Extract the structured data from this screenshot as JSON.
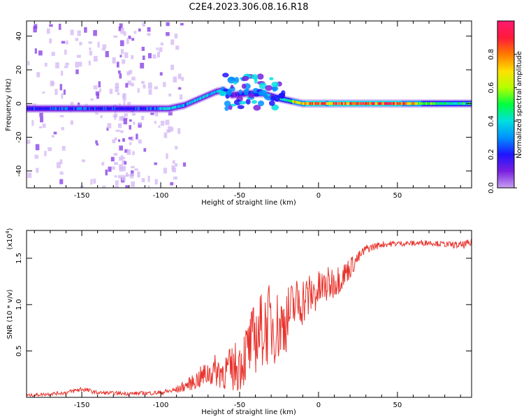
{
  "title": "C2E4.2023.306.08.16.R18",
  "colors": {
    "snr_line": "#e8332c",
    "cmap": [
      "#ffffff",
      "#c7a0f0",
      "#7a1fe0",
      "#1f14ff",
      "#0091ff",
      "#00e0e0",
      "#00ff40",
      "#b4ff00",
      "#ffe000",
      "#ff7a00",
      "#ff1a3a",
      "#ff1a70"
    ]
  },
  "chart_data": [
    {
      "type": "heatmap",
      "xlabel": "Height of straight line (km)",
      "ylabel": "Frequency (Hz)",
      "xlim": [
        -185,
        97
      ],
      "ylim": [
        -50,
        49
      ],
      "xticks": [
        -150,
        -100,
        -50,
        0,
        50
      ],
      "yticks": [
        -40,
        -20,
        0,
        20,
        40
      ],
      "colorbar": {
        "label": "Normalized spectral amplitude",
        "range": [
          0,
          1
        ],
        "ticks": [
          "0.0",
          "0.2",
          "0.4",
          "0.6",
          "0.8"
        ]
      },
      "ridge": {
        "x": [
          -185,
          -160,
          -140,
          -120,
          -105,
          -95,
          -85,
          -75,
          -65,
          -60,
          -55,
          -45,
          -35,
          -25,
          -20,
          -10,
          0,
          5,
          20,
          50,
          75,
          97
        ],
        "freq": [
          -3,
          -3,
          -3,
          -3,
          -3,
          -3,
          -1,
          3,
          7,
          8,
          5,
          6,
          6,
          3,
          2,
          0,
          0,
          0,
          0,
          0,
          0,
          0
        ],
        "amplitude": [
          0.3,
          0.35,
          0.35,
          0.3,
          0.35,
          0.5,
          0.4,
          0.5,
          0.45,
          0.4,
          0.25,
          0.3,
          0.4,
          0.6,
          0.6,
          0.9,
          0.95,
          0.9,
          1.0,
          0.95,
          0.55,
          0.6
        ]
      }
    },
    {
      "type": "line",
      "xlabel": "Height of straight line (km)",
      "ylabel": "SNR (10 * v/v)",
      "y_multiplier": "(x10",
      "y_multiplier_exp": "4",
      "y_multiplier_close": ")",
      "xlim": [
        -185,
        97
      ],
      "ylim": [
        0,
        18000
      ],
      "xticks": [
        -150,
        -100,
        -50,
        0,
        50
      ],
      "yticks": [
        5000,
        10000,
        15000
      ],
      "ytick_labels": [
        "0.5",
        "1.0",
        "1.5"
      ],
      "series": [
        {
          "x": [
            -185,
            -160,
            -150,
            -140,
            -120,
            -100,
            -90,
            -85,
            -80,
            -75,
            -70,
            -65,
            -60,
            -55,
            -50,
            -45,
            -40,
            -35,
            -30,
            -25,
            -20,
            -15,
            -10,
            -5,
            0,
            5,
            10,
            15,
            20,
            25,
            30,
            40,
            50,
            60,
            70,
            80,
            90,
            97
          ],
          "values": [
            200,
            500,
            900,
            500,
            400,
            500,
            800,
            1200,
            1600,
            2100,
            2600,
            2900,
            2800,
            3000,
            3600,
            5000,
            6500,
            7500,
            8000,
            7500,
            8500,
            10000,
            10500,
            11000,
            11500,
            12000,
            12500,
            13000,
            14000,
            15000,
            16000,
            16500,
            16600,
            16600,
            16700,
            16500,
            16400,
            16600
          ],
          "noise": [
            150,
            200,
            300,
            200,
            200,
            250,
            400,
            600,
            800,
            1200,
            1500,
            1800,
            2000,
            2500,
            3000,
            3500,
            4000,
            4200,
            4500,
            4000,
            3500,
            3000,
            2800,
            2500,
            2200,
            2000,
            1800,
            1500,
            1200,
            700,
            500,
            350,
            300,
            300,
            300,
            300,
            400,
            500
          ]
        }
      ]
    }
  ]
}
